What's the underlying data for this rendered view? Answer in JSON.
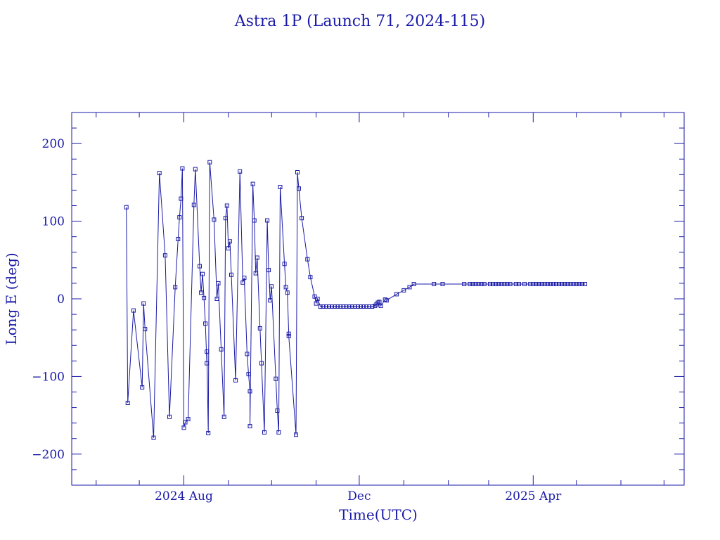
{
  "chart_data": {
    "type": "line",
    "title": "Astra 1P (Launch 71, 2024-115)",
    "xlabel": "Time(UTC)",
    "ylabel": "Long E (deg)",
    "ylim": [
      -240,
      240
    ],
    "xlim": [
      "2024-05-15",
      "2025-07-15"
    ],
    "y_ticks": [
      -200,
      -100,
      0,
      100,
      200
    ],
    "y_tick_labels": [
      "−200",
      "−100",
      "0",
      "100",
      "200"
    ],
    "x_ticks": [
      {
        "date": "2024-08-01",
        "label": "2024 Aug"
      },
      {
        "date": "2024-12-01",
        "label": "Dec"
      },
      {
        "date": "2025-04-01",
        "label": "2025 Apr"
      }
    ],
    "grid": false,
    "colors": {
      "line": "#1a1aa8",
      "axis": "#1a1aa8"
    },
    "series": [
      {
        "marker": "square",
        "points": [
          [
            "2024-06-22",
            118
          ],
          [
            "2024-06-23",
            -134
          ],
          [
            "2024-06-27",
            -15
          ],
          [
            "2024-07-03",
            -114
          ],
          [
            "2024-07-04",
            -6
          ],
          [
            "2024-07-05",
            -39
          ],
          [
            "2024-07-11",
            -179
          ],
          [
            "2024-07-15",
            162
          ],
          [
            "2024-07-19",
            56
          ],
          [
            "2024-07-22",
            -152
          ],
          [
            "2024-07-26",
            15
          ],
          [
            "2024-07-28",
            77
          ],
          [
            "2024-07-29",
            105
          ],
          [
            "2024-07-30",
            129
          ],
          [
            "2024-07-31",
            168
          ],
          [
            "2024-08-01",
            -166
          ],
          [
            "2024-08-02",
            -159
          ],
          [
            "2024-08-04",
            -155
          ],
          [
            "2024-08-08",
            121
          ],
          [
            "2024-08-09",
            167
          ],
          [
            "2024-08-12",
            42
          ],
          [
            "2024-08-13",
            8
          ],
          [
            "2024-08-14",
            32
          ],
          [
            "2024-08-15",
            1
          ],
          [
            "2024-08-16",
            -32
          ],
          [
            "2024-08-17",
            -83
          ],
          [
            "2024-08-17",
            -68
          ],
          [
            "2024-08-18",
            -173
          ],
          [
            "2024-08-19",
            176
          ],
          [
            "2024-08-22",
            102
          ],
          [
            "2024-08-24",
            0
          ],
          [
            "2024-08-25",
            20
          ],
          [
            "2024-08-27",
            -65
          ],
          [
            "2024-08-29",
            -152
          ],
          [
            "2024-08-30",
            104
          ],
          [
            "2024-08-31",
            120
          ],
          [
            "2024-09-01",
            65
          ],
          [
            "2024-09-02",
            74
          ],
          [
            "2024-09-03",
            31
          ],
          [
            "2024-09-06",
            -105
          ],
          [
            "2024-09-09",
            164
          ],
          [
            "2024-09-11",
            21
          ],
          [
            "2024-09-12",
            27
          ],
          [
            "2024-09-14",
            -71
          ],
          [
            "2024-09-15",
            -97
          ],
          [
            "2024-09-16",
            -119
          ],
          [
            "2024-09-16",
            -164
          ],
          [
            "2024-09-18",
            148
          ],
          [
            "2024-09-19",
            101
          ],
          [
            "2024-09-20",
            33
          ],
          [
            "2024-09-21",
            53
          ],
          [
            "2024-09-23",
            -38
          ],
          [
            "2024-09-24",
            -83
          ],
          [
            "2024-09-26",
            -172
          ],
          [
            "2024-09-28",
            101
          ],
          [
            "2024-09-29",
            37
          ],
          [
            "2024-09-30",
            -2
          ],
          [
            "2024-10-01",
            16
          ],
          [
            "2024-10-04",
            -103
          ],
          [
            "2024-10-05",
            -144
          ],
          [
            "2024-10-06",
            -172
          ],
          [
            "2024-10-07",
            144
          ],
          [
            "2024-10-10",
            45
          ],
          [
            "2024-10-11",
            15
          ],
          [
            "2024-10-12",
            8
          ],
          [
            "2024-10-13",
            -45
          ],
          [
            "2024-10-13",
            -48
          ],
          [
            "2024-10-18",
            -175
          ],
          [
            "2024-10-19",
            163
          ],
          [
            "2024-10-20",
            142
          ],
          [
            "2024-10-22",
            104
          ],
          [
            "2024-10-26",
            51
          ],
          [
            "2024-10-28",
            28
          ],
          [
            "2024-10-31",
            3
          ],
          [
            "2024-11-01",
            -6
          ],
          [
            "2024-11-02",
            0
          ],
          [
            "2024-11-04",
            -10
          ],
          [
            "2024-11-06",
            -10
          ],
          [
            "2024-11-08",
            -10
          ],
          [
            "2024-11-10",
            -10
          ],
          [
            "2024-11-12",
            -10
          ],
          [
            "2024-11-14",
            -10
          ],
          [
            "2024-11-16",
            -10
          ],
          [
            "2024-11-18",
            -10
          ],
          [
            "2024-11-20",
            -10
          ],
          [
            "2024-11-22",
            -10
          ],
          [
            "2024-11-24",
            -10
          ],
          [
            "2024-11-26",
            -10
          ],
          [
            "2024-11-28",
            -10
          ],
          [
            "2024-11-30",
            -10
          ],
          [
            "2024-12-02",
            -10
          ],
          [
            "2024-12-04",
            -10
          ],
          [
            "2024-12-06",
            -10
          ],
          [
            "2024-12-08",
            -10
          ],
          [
            "2024-12-10",
            -10
          ],
          [
            "2024-12-12",
            -9
          ],
          [
            "2024-12-13",
            -7
          ],
          [
            "2024-12-14",
            -5
          ],
          [
            "2024-12-15",
            -4
          ],
          [
            "2024-12-16",
            -9
          ],
          [
            "2024-12-19",
            -1
          ],
          [
            "2024-12-20",
            -2
          ],
          [
            "2024-12-27",
            6
          ],
          [
            "2025-01-01",
            11
          ],
          [
            "2025-01-05",
            15
          ],
          [
            "2025-01-08",
            19
          ],
          [
            "2025-01-22",
            19
          ],
          [
            "2025-01-28",
            19
          ],
          [
            "2025-02-12",
            19
          ],
          [
            "2025-02-16",
            19
          ],
          [
            "2025-02-18",
            19
          ],
          [
            "2025-02-20",
            19
          ],
          [
            "2025-02-22",
            19
          ],
          [
            "2025-02-24",
            19
          ],
          [
            "2025-02-26",
            19
          ],
          [
            "2025-03-02",
            19
          ],
          [
            "2025-03-04",
            19
          ],
          [
            "2025-03-06",
            19
          ],
          [
            "2025-03-08",
            19
          ],
          [
            "2025-03-10",
            19
          ],
          [
            "2025-03-12",
            19
          ],
          [
            "2025-03-14",
            19
          ],
          [
            "2025-03-16",
            19
          ],
          [
            "2025-03-20",
            19
          ],
          [
            "2025-03-22",
            19
          ],
          [
            "2025-03-26",
            19
          ],
          [
            "2025-03-30",
            19
          ],
          [
            "2025-04-01",
            19
          ],
          [
            "2025-04-03",
            19
          ],
          [
            "2025-04-05",
            19
          ],
          [
            "2025-04-07",
            19
          ],
          [
            "2025-04-09",
            19
          ],
          [
            "2025-04-11",
            19
          ],
          [
            "2025-04-13",
            19
          ],
          [
            "2025-04-15",
            19
          ],
          [
            "2025-04-17",
            19
          ],
          [
            "2025-04-19",
            19
          ],
          [
            "2025-04-21",
            19
          ],
          [
            "2025-04-23",
            19
          ],
          [
            "2025-04-25",
            19
          ],
          [
            "2025-04-27",
            19
          ],
          [
            "2025-04-29",
            19
          ],
          [
            "2025-05-01",
            19
          ],
          [
            "2025-05-03",
            19
          ],
          [
            "2025-05-05",
            19
          ],
          [
            "2025-05-07",
            19
          ]
        ]
      }
    ]
  }
}
